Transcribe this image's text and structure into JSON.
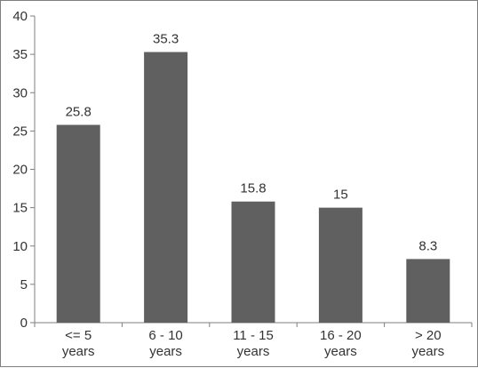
{
  "chart_data": {
    "type": "bar",
    "title": "",
    "xlabel": "",
    "ylabel": "",
    "categories": [
      [
        "<= 5",
        "years"
      ],
      [
        "6 - 10",
        "years"
      ],
      [
        "11 - 15",
        "years"
      ],
      [
        "16 - 20",
        "years"
      ],
      [
        "> 20",
        "years"
      ]
    ],
    "values": [
      25.8,
      35.3,
      15.8,
      15,
      8.3
    ],
    "data_labels": [
      "25.8",
      "35.3",
      "15.8",
      "15",
      "8.3"
    ],
    "ylim": [
      0,
      40
    ],
    "yticks": [
      0,
      5,
      10,
      15,
      20,
      25,
      30,
      35,
      40
    ],
    "grid": false,
    "bar_color": "#606060",
    "axis_color": "#7f7f7f",
    "frame_color": "#7f7f7f"
  }
}
